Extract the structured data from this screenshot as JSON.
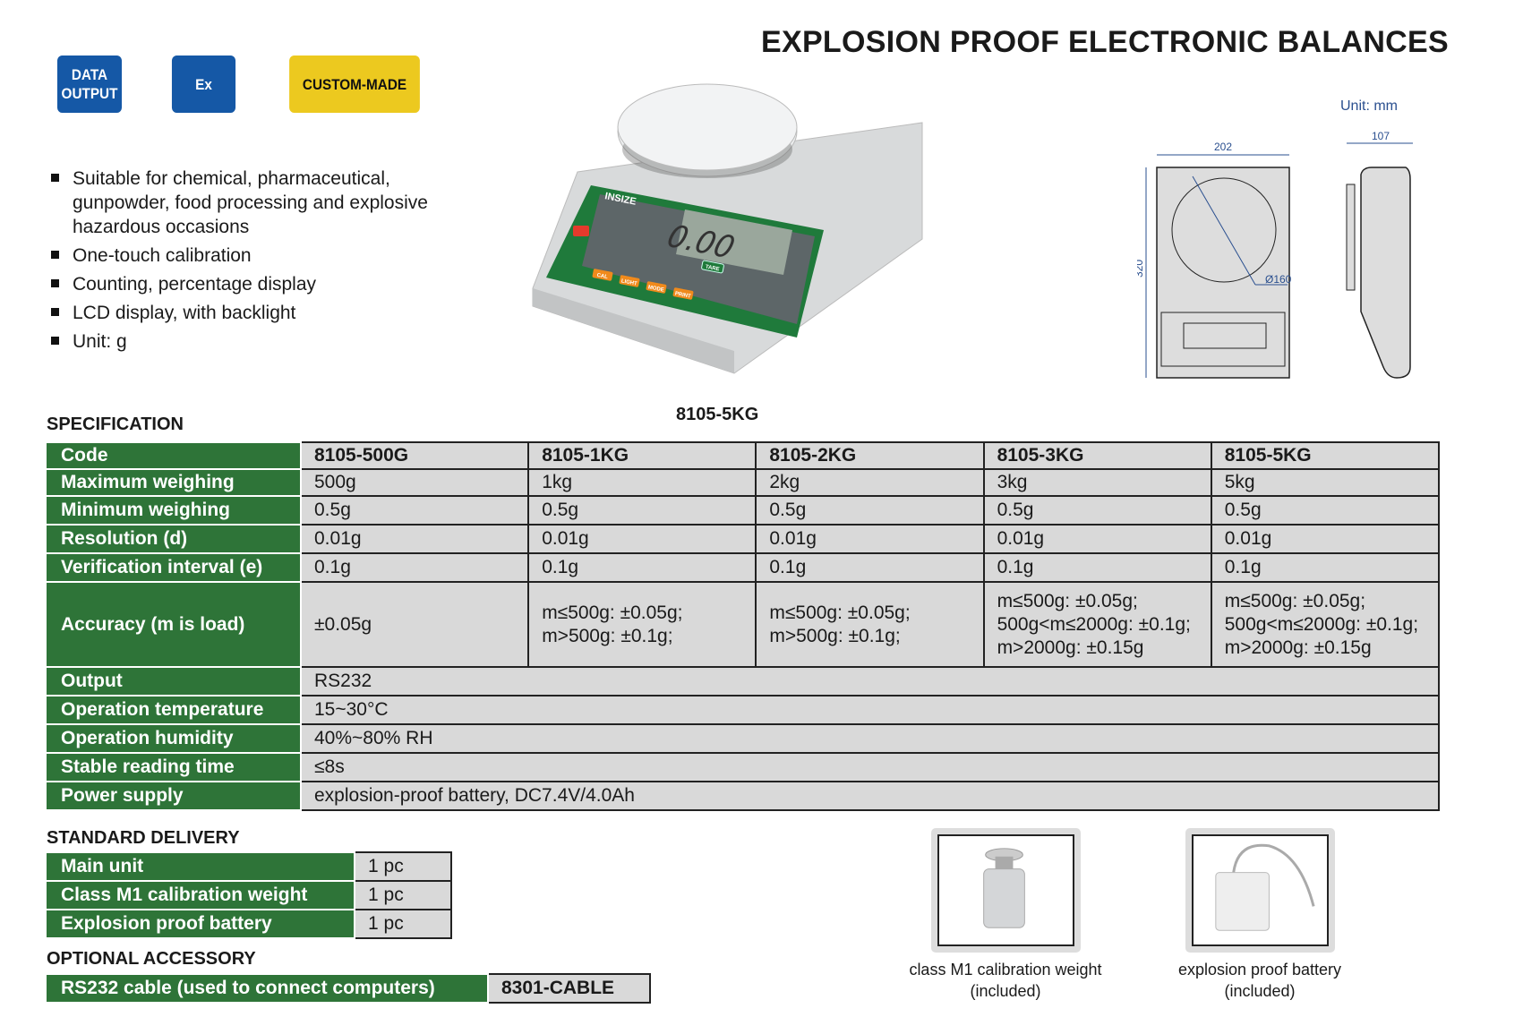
{
  "title": "EXPLOSION PROOF ELECTRONIC BALANCES",
  "badges": {
    "data_output": [
      "DATA",
      "OUTPUT"
    ],
    "ex": "Ex",
    "custom": "CUSTOM-MADE"
  },
  "features": [
    "Suitable for chemical, pharmaceutical, gunpowder, food processing and explosive hazardous occasions",
    "One-touch calibration",
    "Counting, percentage display",
    "LCD display, with backlight",
    "Unit: g"
  ],
  "product_photo": {
    "caption": "8105-5KG",
    "brand": "INSIZE",
    "display": "0.00",
    "unit": "g",
    "buttons": [
      "CAL",
      "LIGHT",
      "MODE",
      "PRINT"
    ],
    "tare": "TARE"
  },
  "drawing": {
    "unit": "Unit: mm",
    "width": "202",
    "depth": "320",
    "height": "107",
    "pan_diameter": "Ø160"
  },
  "colors": {
    "green": "#2e7438",
    "blue": "#1558a6",
    "yellow": "#ecc91f",
    "cell_gray": "#d9d9d9"
  },
  "spec": {
    "heading": "SPECIFICATION",
    "codes_label": "Code",
    "codes": [
      "8105-500G",
      "8105-1KG",
      "8105-2KG",
      "8105-3KG",
      "8105-5KG"
    ],
    "rows": [
      {
        "label": "Maximum weighing",
        "values": [
          "500g",
          "1kg",
          "2kg",
          "3kg",
          "5kg"
        ]
      },
      {
        "label": "Minimum weighing",
        "values": [
          "0.5g",
          "0.5g",
          "0.5g",
          "0.5g",
          "0.5g"
        ]
      },
      {
        "label": "Resolution (d)",
        "values": [
          "0.01g",
          "0.01g",
          "0.01g",
          "0.01g",
          "0.01g"
        ]
      },
      {
        "label": "Verification interval (e)",
        "values": [
          "0.1g",
          "0.1g",
          "0.1g",
          "0.1g",
          "0.1g"
        ]
      }
    ],
    "accuracy": {
      "label": "Accuracy (m is load)",
      "values": [
        [
          "±0.05g"
        ],
        [
          "m≤500g: ±0.05g;",
          "m>500g: ±0.1g;"
        ],
        [
          "m≤500g: ±0.05g;",
          "m>500g: ±0.1g;"
        ],
        [
          "m≤500g: ±0.05g;",
          "500g<m≤2000g: ±0.1g;",
          "m>2000g: ±0.15g"
        ],
        [
          "m≤500g: ±0.05g;",
          "500g<m≤2000g: ±0.1g;",
          "m>2000g: ±0.15g"
        ]
      ]
    },
    "common": [
      {
        "label": "Output",
        "value": "RS232"
      },
      {
        "label": "Operation temperature",
        "value": "15~30°C"
      },
      {
        "label": "Operation humidity",
        "value": "40%~80% RH"
      },
      {
        "label": "Stable reading time",
        "value": "≤8s"
      },
      {
        "label": "Power supply",
        "value": "explosion-proof battery, DC7.4V/4.0Ah"
      }
    ]
  },
  "delivery": {
    "heading": "STANDARD DELIVERY",
    "items": [
      {
        "name": "Main unit",
        "qty": "1 pc"
      },
      {
        "name": "Class M1 calibration weight",
        "qty": "1 pc"
      },
      {
        "name": "Explosion proof battery",
        "qty": "1 pc"
      }
    ]
  },
  "optional": {
    "heading": "OPTIONAL ACCESSORY",
    "items": [
      {
        "name": "RS232 cable (used to connect computers)",
        "code": "8301-CABLE"
      }
    ]
  },
  "accessory_photos": [
    {
      "caption": [
        "class M1 calibration weight",
        "(included)"
      ]
    },
    {
      "caption": [
        "explosion proof battery",
        "(included)"
      ]
    }
  ]
}
